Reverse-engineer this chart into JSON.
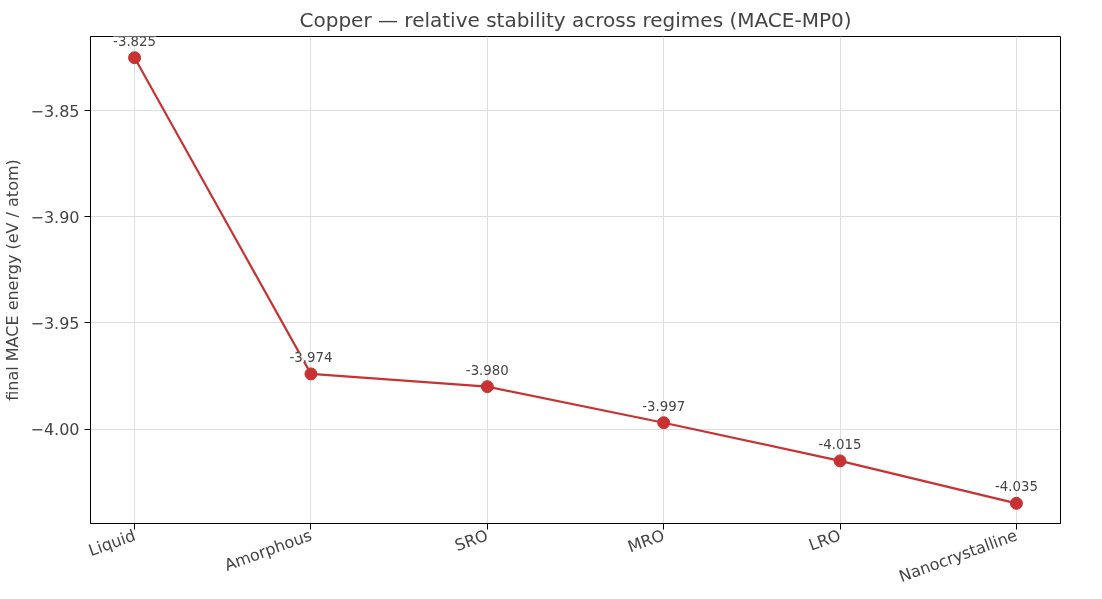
{
  "chart_data": {
    "type": "line",
    "title": "Copper — relative stability across regimes (MACE-MP0)",
    "ylabel": "final MACE energy (eV / atom)",
    "categories": [
      "Liquid",
      "Amorphous",
      "SRO",
      "MRO",
      "LRO",
      "Nanocrystalline"
    ],
    "series": [
      {
        "color": "#c83232",
        "values": [
          -3.825,
          -3.974,
          -3.98,
          -3.997,
          -4.015,
          -4.035
        ]
      }
    ],
    "value_labels": [
      "-3.825",
      "-3.974",
      "-3.980",
      "-3.997",
      "-4.015",
      "-4.035"
    ],
    "ylim": [
      -4.0445,
      -3.815
    ],
    "yticks": [
      {
        "value": -4.0,
        "label": "−4.00"
      },
      {
        "value": -3.95,
        "label": "−3.95"
      },
      {
        "value": -3.9,
        "label": "−3.90"
      },
      {
        "value": -3.85,
        "label": "−3.85"
      }
    ],
    "grid": true,
    "marker": "circle",
    "line_style": "solid"
  }
}
